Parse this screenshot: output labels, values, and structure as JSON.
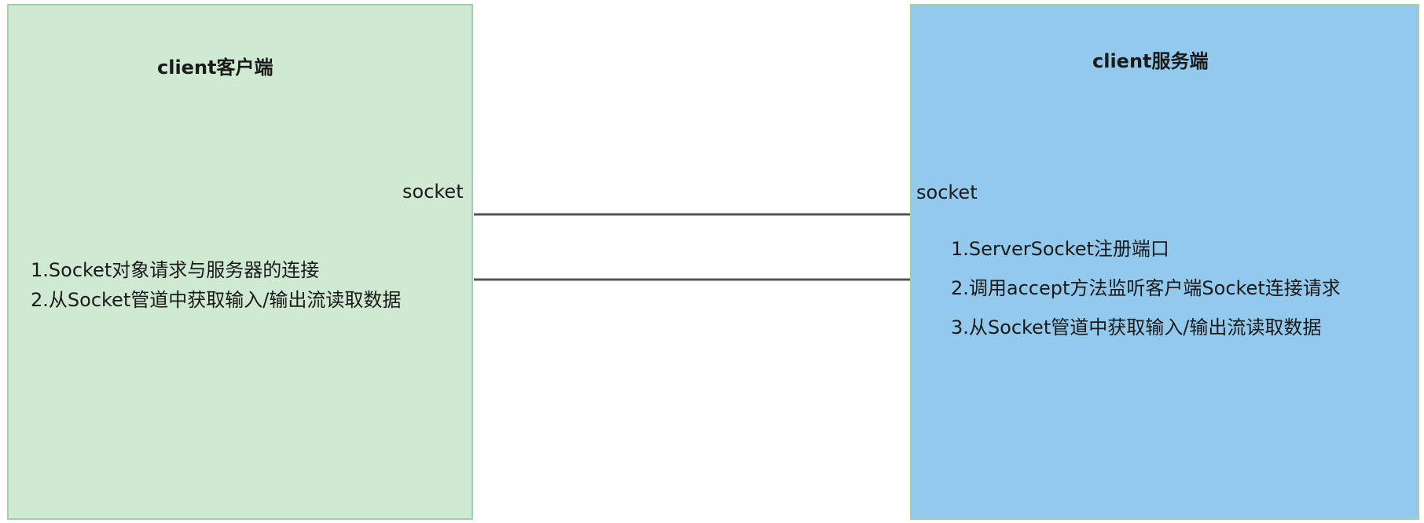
{
  "client": {
    "title": "client客户端",
    "socket_label": "socket",
    "steps": [
      "1.Socket对象请求与服务器的连接",
      "2.从Socket管道中获取输入/输出流读取数据"
    ],
    "fill_color": "#cfe9d3",
    "border_color": "#9fd3a6"
  },
  "server": {
    "title": "client服务端",
    "socket_label": "socket",
    "steps": [
      "1.ServerSocket注册端口",
      "2.调用accept方法监听客户端Socket连接请求",
      "3.从Socket管道中获取输入/输出流读取数据"
    ],
    "fill_color": "#93c9ec",
    "border_color": "#9fd3a6"
  },
  "connector_color": "#555555"
}
